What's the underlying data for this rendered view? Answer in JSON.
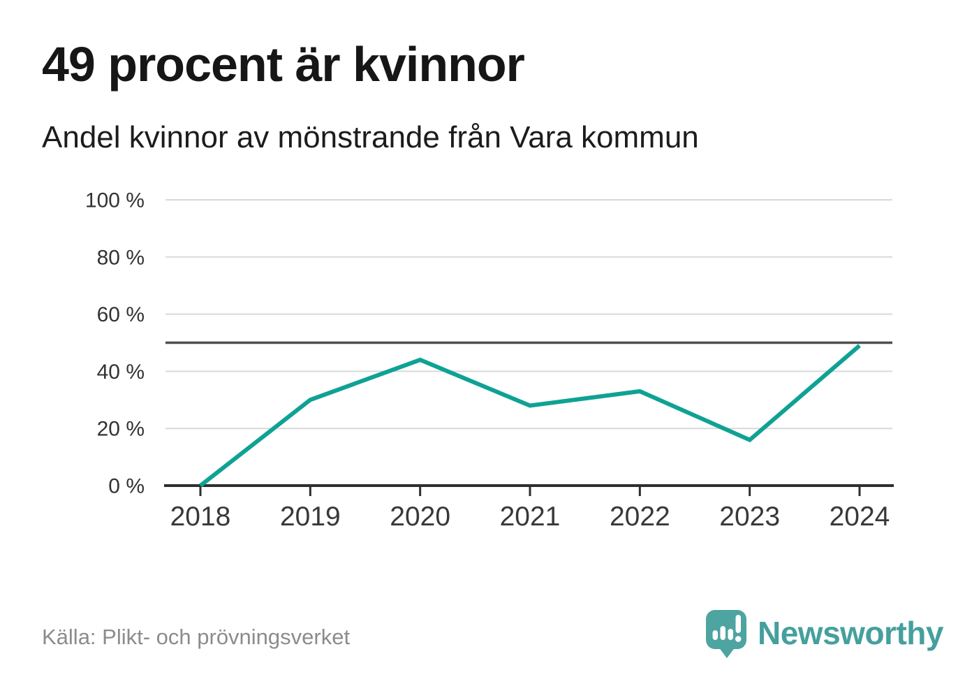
{
  "title": "49 procent är kvinnor",
  "subtitle": "Andel kvinnor av mönstrande från Vara kommun",
  "source": "Källa: Plikt- och prövningsverket",
  "brand": {
    "name": "Newsworthy",
    "logo_icon": "speech-bubble-bar-chart-icon"
  },
  "colors": {
    "line": "#0FA294",
    "reference_line": "#4F4F4F",
    "axis": "#2E2E2E",
    "grid": "#D9D9D9",
    "tick_label": "#333333",
    "title_text": "#161616",
    "source_text": "#8C8C8C",
    "brand_teal": "#4DA4A1"
  },
  "chart_data": {
    "type": "line",
    "title": "49 procent är kvinnor",
    "subtitle": "Andel kvinnor av mönstrande från Vara kommun",
    "x": [
      "2018",
      "2019",
      "2020",
      "2021",
      "2022",
      "2023",
      "2024"
    ],
    "series": [
      {
        "name": "Andel kvinnor av mönstrande",
        "values": [
          0,
          30,
          44,
          28,
          33,
          16,
          49
        ]
      }
    ],
    "unit": "%",
    "ylim": [
      0,
      100
    ],
    "yticks": [
      0,
      20,
      40,
      60,
      80,
      100
    ],
    "ytick_labels": [
      "0 %",
      "20 %",
      "40 %",
      "60 %",
      "80 %",
      "100 %"
    ],
    "reference_line": 50,
    "grid": true,
    "legend": false,
    "latest_value": 49
  }
}
